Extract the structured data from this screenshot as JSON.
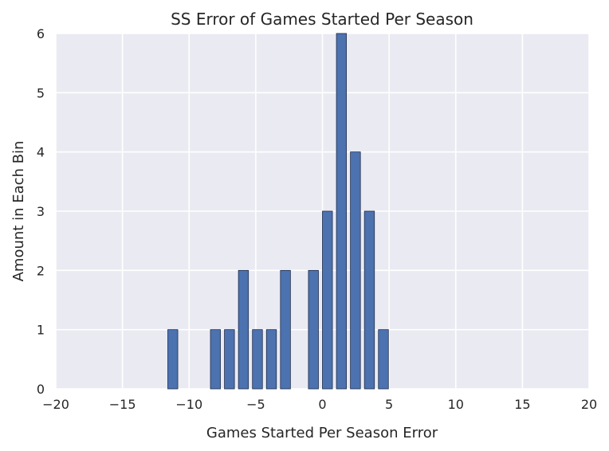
{
  "chart_data": {
    "type": "bar",
    "title": "SS Error of Games Started Per Season",
    "xlabel": "Games Started Per Season Error",
    "ylabel": "Amount in Each Bin",
    "xlim": [
      -20,
      20
    ],
    "ylim": [
      0,
      6
    ],
    "xticks": [
      -20,
      -15,
      -10,
      -5,
      0,
      5,
      10,
      15,
      20
    ],
    "xtick_labels": [
      "−20",
      "−15",
      "−10",
      "−5",
      "0",
      "5",
      "10",
      "15",
      "20"
    ],
    "yticks": [
      0,
      1,
      2,
      3,
      4,
      5,
      6
    ],
    "ytick_labels": [
      "0",
      "1",
      "2",
      "3",
      "4",
      "5",
      "6"
    ],
    "bar_width": 0.75,
    "bars": [
      {
        "x_left": -11.6,
        "value": 1
      },
      {
        "x_left": -8.4,
        "value": 1
      },
      {
        "x_left": -7.35,
        "value": 1
      },
      {
        "x_left": -6.3,
        "value": 2
      },
      {
        "x_left": -5.25,
        "value": 1
      },
      {
        "x_left": -4.2,
        "value": 1
      },
      {
        "x_left": -3.15,
        "value": 2
      },
      {
        "x_left": -1.05,
        "value": 2
      },
      {
        "x_left": 0.0,
        "value": 3
      },
      {
        "x_left": 1.05,
        "value": 6
      },
      {
        "x_left": 2.1,
        "value": 4
      },
      {
        "x_left": 3.15,
        "value": 3
      },
      {
        "x_left": 4.2,
        "value": 1
      }
    ],
    "grid": true,
    "colors": {
      "bar_fill": "#4c72b0",
      "bar_edge": "#1f2d4a",
      "plot_background": "#eaeaf2",
      "grid": "#ffffff",
      "text": "#262626"
    }
  }
}
